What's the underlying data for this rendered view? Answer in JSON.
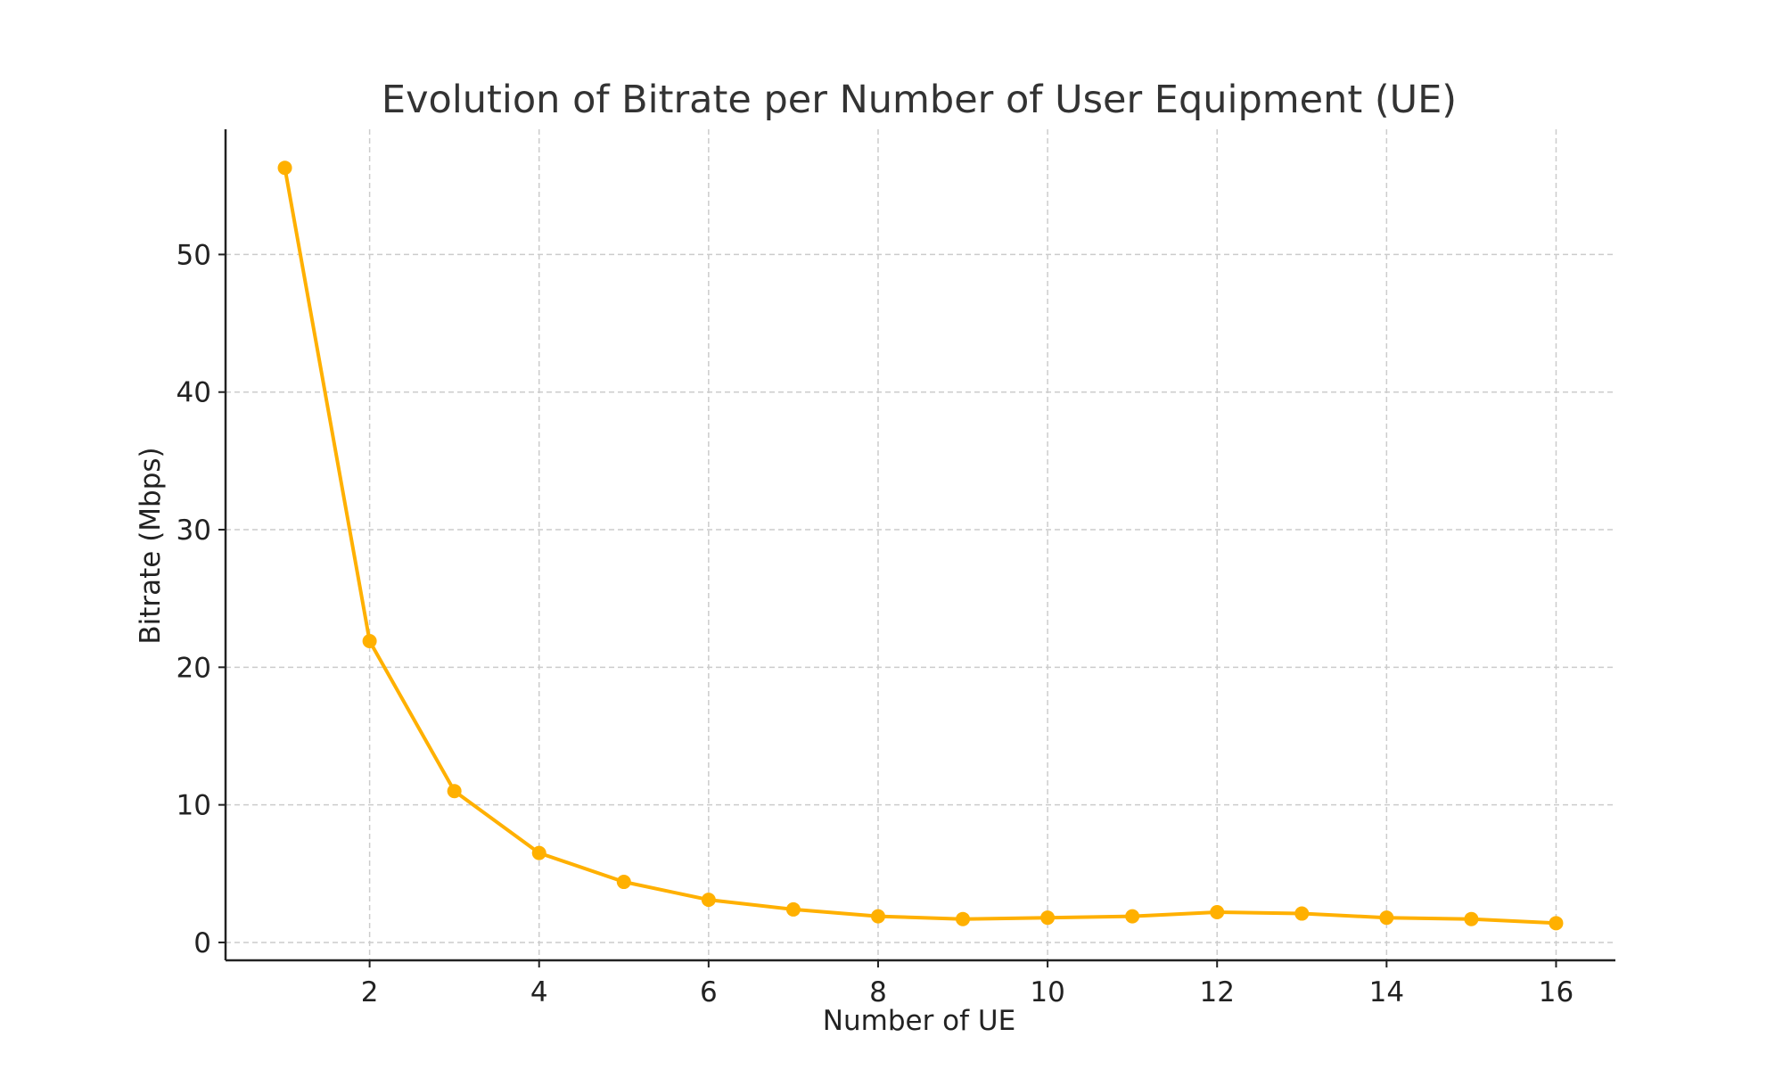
{
  "chart_data": {
    "type": "line",
    "title": "Evolution of Bitrate per Number of User Equipment (UE)",
    "xlabel": "Number of UE",
    "ylabel": "Bitrate (Mbps)",
    "xlim": [
      0.3,
      16.7
    ],
    "ylim": [
      -1.3,
      59.1
    ],
    "x_ticks": [
      2,
      4,
      6,
      8,
      10,
      12,
      14,
      16
    ],
    "y_ticks": [
      0,
      10,
      20,
      30,
      40,
      50
    ],
    "grid": true,
    "series": [
      {
        "color": "#FFB000",
        "marker": "circle",
        "x": [
          1,
          2,
          3,
          4,
          5,
          6,
          7,
          8,
          9,
          10,
          11,
          12,
          13,
          14,
          15,
          16
        ],
        "y": [
          56.3,
          21.9,
          11.0,
          6.5,
          4.4,
          3.1,
          2.4,
          1.9,
          1.7,
          1.8,
          1.9,
          2.2,
          2.1,
          1.8,
          1.7,
          1.4
        ]
      }
    ]
  }
}
